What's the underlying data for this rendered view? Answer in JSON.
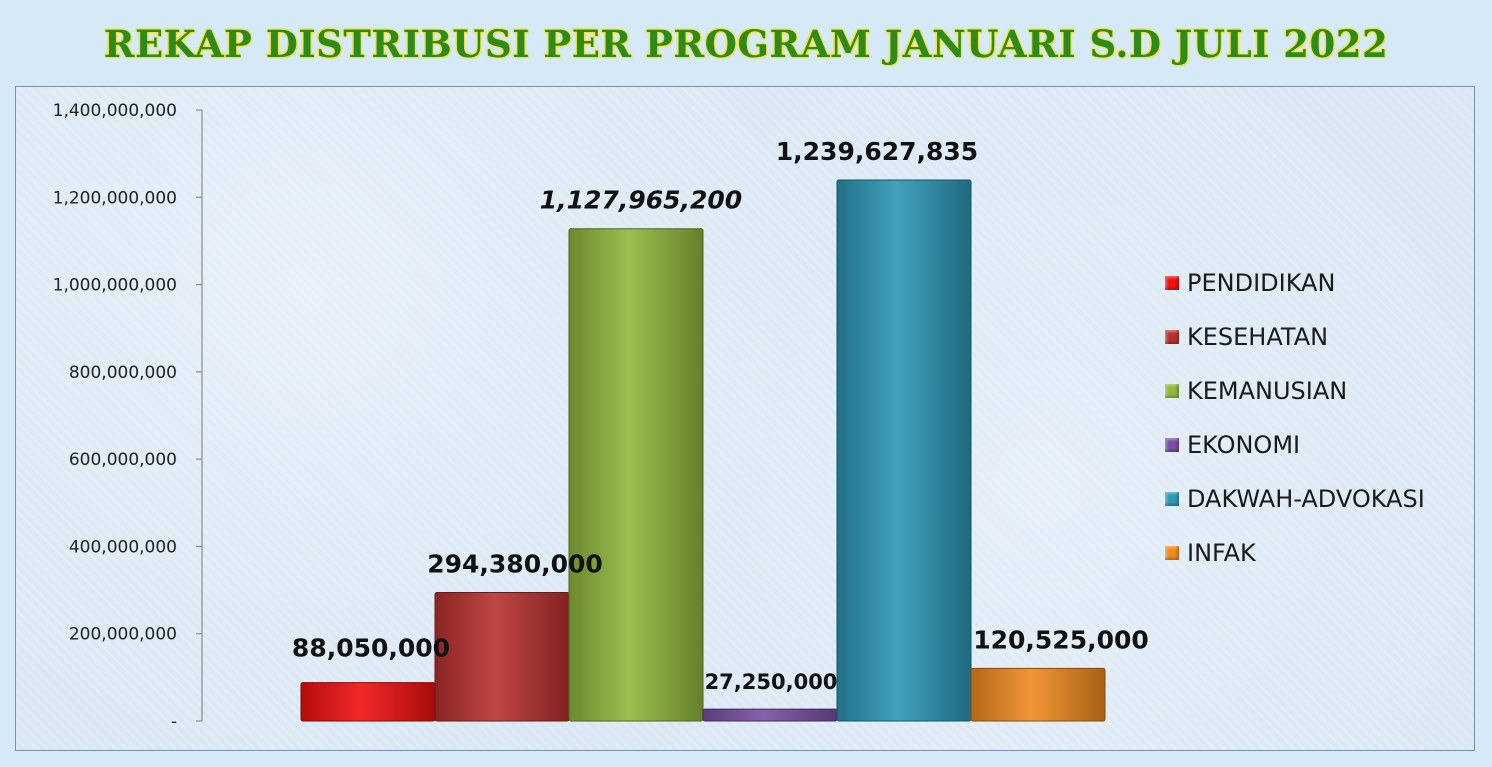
{
  "title": "REKAP DISTRIBUSI PER PROGRAM  JANUARI S.D JULI 2022",
  "chart_data": {
    "type": "bar",
    "title": "REKAP DISTRIBUSI PER PROGRAM  JANUARI S.D JULI 2022",
    "xlabel": "",
    "ylabel": "",
    "ylim": [
      0,
      1400000000
    ],
    "yticks": [
      {
        "value": 0,
        "label": "-"
      },
      {
        "value": 200000000,
        "label": "200,000,000"
      },
      {
        "value": 400000000,
        "label": "400,000,000"
      },
      {
        "value": 600000000,
        "label": "600,000,000"
      },
      {
        "value": 800000000,
        "label": "800,000,000"
      },
      {
        "value": 1000000000,
        "label": "1,000,000,000"
      },
      {
        "value": 1200000000,
        "label": "1,200,000,000"
      },
      {
        "value": 1400000000,
        "label": "1,400,000,000"
      }
    ],
    "grid": false,
    "legend_position": "right",
    "series": [
      {
        "name": "PENDIDIKAN",
        "value": 88050000,
        "label": "88,050,000",
        "color": "#f01010"
      },
      {
        "name": "KESEHATAN",
        "value": 294380000,
        "label": "294,380,000",
        "color": "#b8312f"
      },
      {
        "name": "KEMANUSIAN",
        "value": 1127965200,
        "label": "1,127,965,200",
        "color": "#8fb83c"
      },
      {
        "name": "EKONOMI",
        "value": 27250000,
        "label": "27,250,000",
        "color": "#7b4fa3"
      },
      {
        "name": "DAKWAH-ADVOKASI",
        "value": 1239627835,
        "label": "1,239,627,835",
        "color": "#2d97b5"
      },
      {
        "name": "INFAK",
        "value": 120525000,
        "label": "120,525,000",
        "color": "#f08a1f"
      }
    ]
  }
}
